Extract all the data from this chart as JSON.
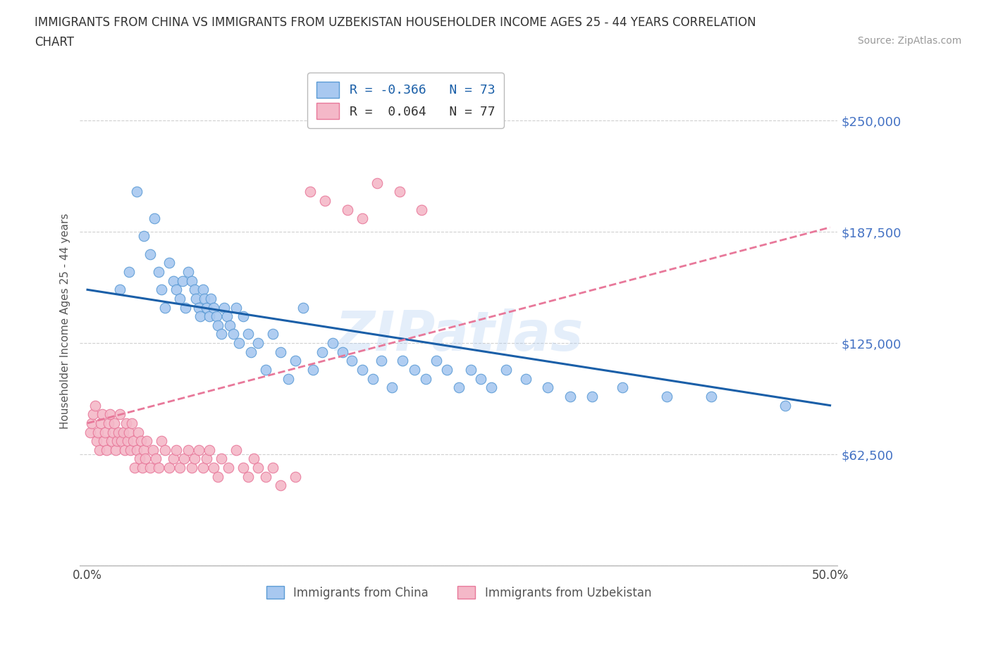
{
  "title_line1": "IMMIGRANTS FROM CHINA VS IMMIGRANTS FROM UZBEKISTAN HOUSEHOLDER INCOME AGES 25 - 44 YEARS CORRELATION",
  "title_line2": "CHART",
  "source_text": "Source: ZipAtlas.com",
  "ylabel": "Householder Income Ages 25 - 44 years",
  "xlim": [
    -0.005,
    0.505
  ],
  "ylim": [
    0,
    275000
  ],
  "yticks": [
    0,
    62500,
    125000,
    187500,
    250000
  ],
  "xticks": [
    0.0,
    0.05,
    0.1,
    0.15,
    0.2,
    0.25,
    0.3,
    0.35,
    0.4,
    0.45,
    0.5
  ],
  "xtick_labels": [
    "0.0%",
    "",
    "",
    "",
    "",
    "",
    "",
    "",
    "",
    "",
    "50.0%"
  ],
  "ytick_labels": [
    "",
    "$62,500",
    "$125,000",
    "$187,500",
    "$250,000"
  ],
  "china_color": "#a8c8f0",
  "china_edge_color": "#5b9bd5",
  "uzbekistan_color": "#f4b8c8",
  "uzbekistan_edge_color": "#e8789a",
  "china_trend_color": "#1a5fa8",
  "uzbekistan_trend_color": "#e8789a",
  "legend_R_china": "R = -0.366",
  "legend_N_china": "N = 73",
  "legend_R_uzbekistan": "R =  0.064",
  "legend_N_uzbekistan": "N = 77",
  "background_color": "#ffffff",
  "grid_color": "#d0d0d0",
  "watermark": "ZIPatlas",
  "china_x": [
    0.022,
    0.028,
    0.033,
    0.038,
    0.042,
    0.045,
    0.048,
    0.05,
    0.052,
    0.055,
    0.058,
    0.06,
    0.062,
    0.064,
    0.066,
    0.068,
    0.07,
    0.072,
    0.073,
    0.075,
    0.076,
    0.078,
    0.079,
    0.08,
    0.082,
    0.083,
    0.085,
    0.087,
    0.088,
    0.09,
    0.092,
    0.094,
    0.096,
    0.098,
    0.1,
    0.102,
    0.105,
    0.108,
    0.11,
    0.115,
    0.12,
    0.125,
    0.13,
    0.135,
    0.14,
    0.145,
    0.152,
    0.158,
    0.165,
    0.172,
    0.178,
    0.185,
    0.192,
    0.198,
    0.205,
    0.212,
    0.22,
    0.228,
    0.235,
    0.242,
    0.25,
    0.258,
    0.265,
    0.272,
    0.282,
    0.295,
    0.31,
    0.325,
    0.34,
    0.36,
    0.39,
    0.42,
    0.47
  ],
  "china_y": [
    155000,
    165000,
    210000,
    185000,
    175000,
    195000,
    165000,
    155000,
    145000,
    170000,
    160000,
    155000,
    150000,
    160000,
    145000,
    165000,
    160000,
    155000,
    150000,
    145000,
    140000,
    155000,
    150000,
    145000,
    140000,
    150000,
    145000,
    140000,
    135000,
    130000,
    145000,
    140000,
    135000,
    130000,
    145000,
    125000,
    140000,
    130000,
    120000,
    125000,
    110000,
    130000,
    120000,
    105000,
    115000,
    145000,
    110000,
    120000,
    125000,
    120000,
    115000,
    110000,
    105000,
    115000,
    100000,
    115000,
    110000,
    105000,
    115000,
    110000,
    100000,
    110000,
    105000,
    100000,
    110000,
    105000,
    100000,
    95000,
    95000,
    100000,
    95000,
    95000,
    90000
  ],
  "uzbekistan_x": [
    0.002,
    0.003,
    0.004,
    0.005,
    0.006,
    0.007,
    0.008,
    0.009,
    0.01,
    0.011,
    0.012,
    0.013,
    0.014,
    0.015,
    0.016,
    0.017,
    0.018,
    0.019,
    0.02,
    0.021,
    0.022,
    0.023,
    0.024,
    0.025,
    0.026,
    0.027,
    0.028,
    0.029,
    0.03,
    0.031,
    0.032,
    0.033,
    0.034,
    0.035,
    0.036,
    0.037,
    0.038,
    0.039,
    0.04,
    0.042,
    0.044,
    0.046,
    0.048,
    0.05,
    0.052,
    0.055,
    0.058,
    0.06,
    0.062,
    0.065,
    0.068,
    0.07,
    0.072,
    0.075,
    0.078,
    0.08,
    0.082,
    0.085,
    0.088,
    0.09,
    0.095,
    0.1,
    0.105,
    0.108,
    0.112,
    0.115,
    0.12,
    0.125,
    0.13,
    0.14,
    0.15,
    0.16,
    0.175,
    0.185,
    0.195,
    0.21,
    0.225
  ],
  "uzbekistan_y": [
    75000,
    80000,
    85000,
    90000,
    70000,
    75000,
    65000,
    80000,
    85000,
    70000,
    75000,
    65000,
    80000,
    85000,
    70000,
    75000,
    80000,
    65000,
    70000,
    75000,
    85000,
    70000,
    75000,
    65000,
    80000,
    70000,
    75000,
    65000,
    80000,
    70000,
    55000,
    65000,
    75000,
    60000,
    70000,
    55000,
    65000,
    60000,
    70000,
    55000,
    65000,
    60000,
    55000,
    70000,
    65000,
    55000,
    60000,
    65000,
    55000,
    60000,
    65000,
    55000,
    60000,
    65000,
    55000,
    60000,
    65000,
    55000,
    50000,
    60000,
    55000,
    65000,
    55000,
    50000,
    60000,
    55000,
    50000,
    55000,
    45000,
    50000,
    210000,
    205000,
    200000,
    195000,
    215000,
    210000,
    200000
  ]
}
